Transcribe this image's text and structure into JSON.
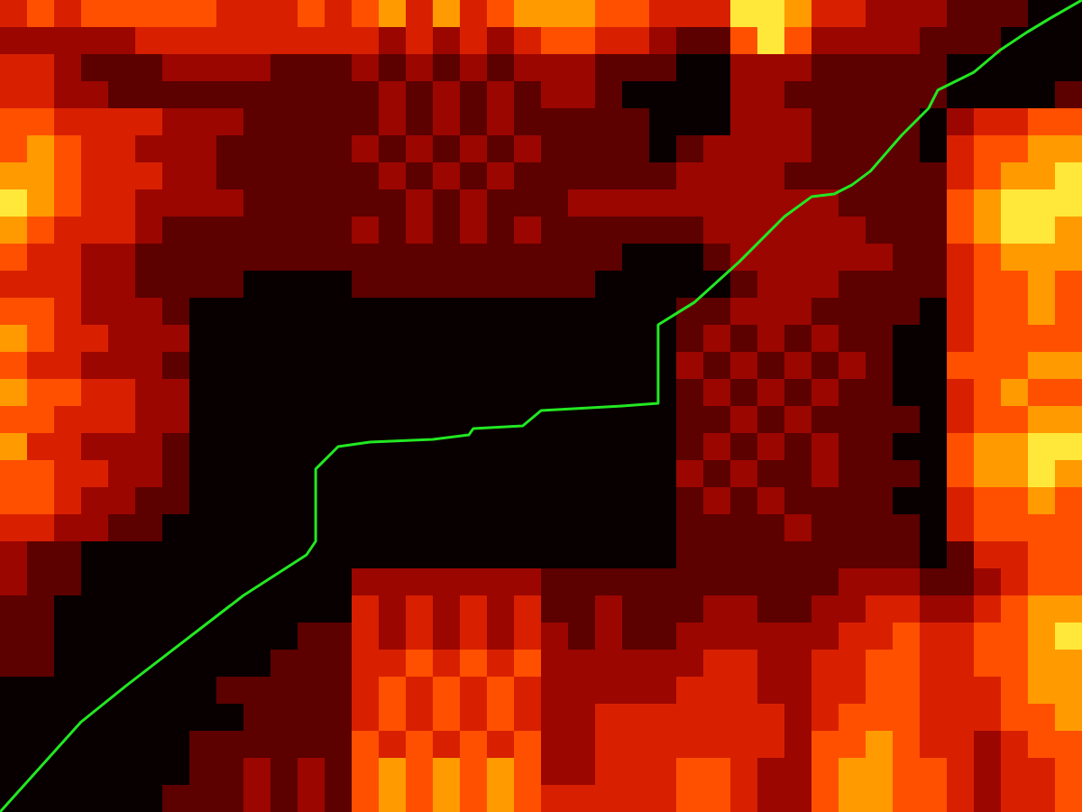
{
  "chart_data": {
    "type": "heatmap",
    "tick_labels": false,
    "xlim": [
      0,
      40
    ],
    "ylim": [
      30,
      0
    ],
    "zlim": [
      0,
      6
    ],
    "z": [
      [
        3,
        4,
        3,
        4,
        4,
        4,
        4,
        4,
        3,
        3,
        3,
        4,
        3,
        4,
        5,
        3,
        5,
        3,
        4,
        5,
        5,
        5,
        4,
        4,
        3,
        3,
        3,
        6,
        6,
        5,
        3,
        3,
        2,
        2,
        2,
        1,
        1,
        1,
        0,
        0
      ],
      [
        2,
        2,
        2,
        2,
        2,
        3,
        3,
        3,
        3,
        3,
        3,
        3,
        3,
        3,
        2,
        3,
        2,
        3,
        2,
        3,
        4,
        4,
        3,
        3,
        2,
        1,
        1,
        4,
        6,
        4,
        2,
        2,
        2,
        2,
        1,
        1,
        1,
        0,
        0,
        0
      ],
      [
        3,
        3,
        2,
        1,
        1,
        1,
        2,
        2,
        2,
        2,
        1,
        1,
        1,
        2,
        1,
        2,
        1,
        2,
        1,
        2,
        2,
        2,
        1,
        1,
        1,
        0,
        0,
        2,
        2,
        2,
        1,
        1,
        1,
        1,
        1,
        0,
        0,
        0,
        0,
        0
      ],
      [
        3,
        3,
        2,
        2,
        1,
        1,
        1,
        1,
        1,
        1,
        1,
        1,
        1,
        1,
        2,
        1,
        2,
        1,
        2,
        1,
        2,
        2,
        1,
        0,
        0,
        0,
        0,
        2,
        2,
        1,
        1,
        1,
        1,
        1,
        1,
        0,
        0,
        0,
        0,
        1
      ],
      [
        4,
        4,
        3,
        3,
        3,
        3,
        2,
        2,
        2,
        1,
        1,
        1,
        1,
        1,
        2,
        1,
        2,
        1,
        2,
        1,
        1,
        1,
        1,
        1,
        0,
        0,
        0,
        2,
        2,
        2,
        1,
        1,
        1,
        1,
        0,
        2,
        3,
        3,
        4,
        4
      ],
      [
        4,
        5,
        4,
        3,
        3,
        2,
        2,
        2,
        1,
        1,
        1,
        1,
        1,
        2,
        1,
        2,
        1,
        2,
        1,
        2,
        1,
        1,
        1,
        1,
        0,
        1,
        2,
        2,
        2,
        2,
        1,
        1,
        1,
        1,
        0,
        3,
        4,
        4,
        5,
        5
      ],
      [
        5,
        5,
        4,
        3,
        3,
        3,
        2,
        2,
        1,
        1,
        1,
        1,
        1,
        1,
        2,
        1,
        2,
        1,
        2,
        1,
        1,
        1,
        1,
        1,
        1,
        2,
        2,
        2,
        2,
        1,
        1,
        1,
        1,
        1,
        1,
        3,
        4,
        5,
        5,
        6
      ],
      [
        6,
        5,
        4,
        3,
        3,
        2,
        2,
        2,
        2,
        1,
        1,
        1,
        1,
        1,
        1,
        2,
        1,
        2,
        1,
        1,
        1,
        2,
        2,
        2,
        2,
        2,
        2,
        2,
        2,
        2,
        2,
        1,
        1,
        1,
        1,
        4,
        5,
        6,
        6,
        6
      ],
      [
        5,
        4,
        3,
        3,
        3,
        2,
        1,
        1,
        1,
        1,
        1,
        1,
        1,
        2,
        1,
        2,
        1,
        2,
        1,
        2,
        1,
        1,
        1,
        1,
        1,
        1,
        2,
        2,
        2,
        2,
        2,
        2,
        1,
        1,
        1,
        4,
        5,
        6,
        6,
        5
      ],
      [
        4,
        3,
        3,
        2,
        2,
        1,
        1,
        1,
        1,
        1,
        1,
        1,
        1,
        1,
        1,
        1,
        1,
        1,
        1,
        1,
        1,
        1,
        1,
        0,
        0,
        0,
        1,
        2,
        2,
        2,
        2,
        2,
        2,
        1,
        1,
        3,
        4,
        5,
        5,
        5
      ],
      [
        3,
        3,
        3,
        2,
        2,
        1,
        1,
        1,
        1,
        0,
        0,
        0,
        0,
        1,
        1,
        1,
        1,
        1,
        1,
        1,
        1,
        1,
        0,
        0,
        0,
        0,
        0,
        1,
        2,
        2,
        2,
        1,
        1,
        1,
        1,
        3,
        4,
        4,
        5,
        4
      ],
      [
        4,
        4,
        3,
        2,
        2,
        2,
        1,
        0,
        0,
        0,
        0,
        0,
        0,
        0,
        0,
        0,
        0,
        0,
        0,
        0,
        0,
        0,
        0,
        0,
        0,
        1,
        1,
        2,
        2,
        2,
        1,
        1,
        1,
        1,
        0,
        3,
        4,
        4,
        5,
        4
      ],
      [
        5,
        4,
        3,
        3,
        2,
        2,
        2,
        0,
        0,
        0,
        0,
        0,
        0,
        0,
        0,
        0,
        0,
        0,
        0,
        0,
        0,
        0,
        0,
        0,
        0,
        1,
        2,
        1,
        2,
        1,
        2,
        1,
        1,
        0,
        0,
        3,
        4,
        4,
        4,
        4
      ],
      [
        4,
        3,
        3,
        2,
        2,
        2,
        1,
        0,
        0,
        0,
        0,
        0,
        0,
        0,
        0,
        0,
        0,
        0,
        0,
        0,
        0,
        0,
        0,
        0,
        0,
        2,
        1,
        2,
        1,
        2,
        1,
        2,
        1,
        0,
        0,
        4,
        4,
        4,
        5,
        5
      ],
      [
        5,
        4,
        4,
        3,
        3,
        2,
        2,
        0,
        0,
        0,
        0,
        0,
        0,
        0,
        0,
        0,
        0,
        0,
        0,
        0,
        0,
        0,
        0,
        0,
        0,
        1,
        2,
        1,
        2,
        1,
        2,
        1,
        1,
        0,
        0,
        3,
        4,
        5,
        4,
        4
      ],
      [
        4,
        4,
        3,
        3,
        3,
        2,
        2,
        0,
        0,
        0,
        0,
        0,
        0,
        0,
        0,
        0,
        0,
        0,
        0,
        0,
        0,
        0,
        0,
        0,
        0,
        1,
        1,
        2,
        1,
        2,
        1,
        1,
        1,
        1,
        0,
        3,
        4,
        4,
        5,
        5
      ],
      [
        5,
        3,
        3,
        2,
        2,
        2,
        1,
        0,
        0,
        0,
        0,
        0,
        0,
        0,
        0,
        0,
        0,
        0,
        0,
        0,
        0,
        0,
        0,
        0,
        0,
        1,
        2,
        1,
        2,
        1,
        2,
        1,
        1,
        0,
        0,
        4,
        5,
        5,
        6,
        6
      ],
      [
        4,
        4,
        3,
        3,
        2,
        2,
        1,
        0,
        0,
        0,
        0,
        0,
        0,
        0,
        0,
        0,
        0,
        0,
        0,
        0,
        0,
        0,
        0,
        0,
        0,
        2,
        1,
        2,
        1,
        1,
        2,
        1,
        1,
        1,
        0,
        4,
        5,
        5,
        6,
        5
      ],
      [
        4,
        4,
        3,
        2,
        2,
        1,
        1,
        0,
        0,
        0,
        0,
        0,
        0,
        0,
        0,
        0,
        0,
        0,
        0,
        0,
        0,
        0,
        0,
        0,
        0,
        1,
        2,
        1,
        2,
        1,
        1,
        1,
        1,
        0,
        0,
        3,
        4,
        4,
        5,
        4
      ],
      [
        3,
        3,
        2,
        2,
        1,
        1,
        0,
        0,
        0,
        0,
        0,
        0,
        0,
        0,
        0,
        0,
        0,
        0,
        0,
        0,
        0,
        0,
        0,
        0,
        0,
        1,
        1,
        1,
        1,
        2,
        1,
        1,
        1,
        1,
        0,
        3,
        4,
        4,
        4,
        4
      ],
      [
        2,
        1,
        1,
        0,
        0,
        0,
        0,
        0,
        0,
        0,
        0,
        0,
        0,
        0,
        0,
        0,
        0,
        0,
        0,
        0,
        0,
        0,
        0,
        0,
        0,
        1,
        1,
        1,
        1,
        1,
        1,
        1,
        1,
        1,
        0,
        1,
        3,
        3,
        4,
        4
      ],
      [
        2,
        1,
        1,
        0,
        0,
        0,
        0,
        0,
        0,
        0,
        0,
        0,
        0,
        2,
        2,
        2,
        2,
        2,
        2,
        2,
        1,
        1,
        1,
        1,
        1,
        1,
        1,
        1,
        1,
        1,
        1,
        2,
        2,
        2,
        1,
        1,
        2,
        3,
        4,
        4
      ],
      [
        1,
        1,
        0,
        0,
        0,
        0,
        0,
        0,
        0,
        0,
        0,
        0,
        0,
        3,
        2,
        3,
        2,
        3,
        2,
        3,
        1,
        1,
        2,
        1,
        1,
        1,
        2,
        2,
        1,
        1,
        2,
        2,
        3,
        3,
        2,
        2,
        3,
        4,
        5,
        5
      ],
      [
        1,
        1,
        0,
        0,
        0,
        0,
        0,
        0,
        0,
        0,
        0,
        1,
        1,
        3,
        2,
        3,
        2,
        3,
        2,
        3,
        2,
        1,
        2,
        1,
        1,
        2,
        2,
        2,
        2,
        2,
        2,
        3,
        3,
        4,
        3,
        3,
        4,
        4,
        5,
        6
      ],
      [
        1,
        1,
        0,
        0,
        0,
        0,
        0,
        0,
        0,
        0,
        1,
        1,
        1,
        3,
        3,
        4,
        3,
        4,
        3,
        4,
        2,
        2,
        2,
        2,
        2,
        2,
        3,
        3,
        2,
        2,
        3,
        3,
        4,
        4,
        3,
        3,
        4,
        4,
        5,
        5
      ],
      [
        0,
        0,
        0,
        0,
        0,
        0,
        0,
        0,
        1,
        1,
        1,
        1,
        1,
        3,
        4,
        3,
        4,
        3,
        4,
        3,
        2,
        2,
        2,
        2,
        2,
        3,
        3,
        3,
        2,
        2,
        3,
        3,
        4,
        4,
        3,
        3,
        3,
        4,
        5,
        5
      ],
      [
        0,
        0,
        0,
        0,
        0,
        0,
        0,
        0,
        0,
        1,
        1,
        1,
        1,
        3,
        4,
        3,
        4,
        3,
        4,
        3,
        2,
        2,
        3,
        3,
        3,
        3,
        3,
        3,
        3,
        2,
        3,
        4,
        4,
        4,
        3,
        3,
        3,
        4,
        4,
        5
      ],
      [
        0,
        0,
        0,
        0,
        0,
        0,
        0,
        1,
        1,
        1,
        1,
        1,
        1,
        4,
        3,
        4,
        3,
        4,
        3,
        4,
        2,
        2,
        3,
        3,
        3,
        3,
        3,
        3,
        3,
        2,
        4,
        4,
        5,
        4,
        3,
        3,
        2,
        3,
        4,
        4
      ],
      [
        0,
        0,
        0,
        0,
        0,
        0,
        0,
        1,
        1,
        2,
        1,
        2,
        1,
        4,
        5,
        4,
        5,
        4,
        5,
        4,
        2,
        2,
        3,
        3,
        3,
        4,
        4,
        3,
        2,
        2,
        4,
        5,
        5,
        4,
        4,
        3,
        2,
        3,
        3,
        4
      ],
      [
        0,
        0,
        0,
        0,
        0,
        0,
        1,
        1,
        1,
        2,
        1,
        2,
        1,
        4,
        5,
        4,
        5,
        4,
        5,
        4,
        3,
        3,
        3,
        3,
        3,
        4,
        4,
        3,
        2,
        2,
        4,
        5,
        5,
        4,
        4,
        3,
        2,
        3,
        3,
        4
      ]
    ],
    "series": [
      {
        "type": "line",
        "color": "#22e822",
        "x": [
          0,
          3,
          4.67,
          9,
          11.33,
          11.67,
          11.67,
          12.5,
          13.67,
          16,
          17.33,
          17.5,
          19.33,
          20,
          23,
          24.33,
          24.33,
          25.67,
          27.33,
          29,
          30,
          30.83,
          31.5,
          32.17,
          33.33,
          34.33,
          34.67,
          36,
          37,
          38,
          38.83,
          40
        ],
        "values": [
          30,
          26.67,
          25.33,
          22,
          20.5,
          20,
          17.33,
          16.5,
          16.33,
          16.23,
          16.07,
          15.83,
          15.73,
          15.17,
          15,
          14.9,
          12,
          11.17,
          9.67,
          8,
          7.27,
          7.17,
          6.83,
          6.33,
          5,
          4,
          3.33,
          2.67,
          1.83,
          1.17,
          0.67,
          0
        ]
      }
    ]
  }
}
